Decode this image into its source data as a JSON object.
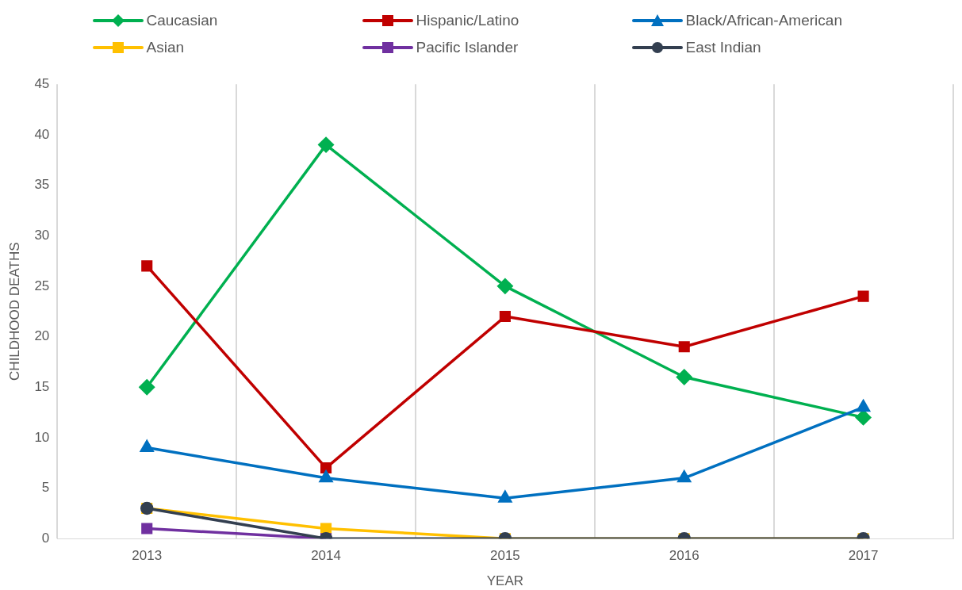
{
  "chart_data": {
    "type": "line",
    "xlabel": "YEAR",
    "ylabel": "CHILDHOOD DEATHS",
    "categories": [
      "2013",
      "2014",
      "2015",
      "2016",
      "2017"
    ],
    "series": [
      {
        "name": "Caucasian",
        "color": "#00b050",
        "marker": "diamond",
        "values": [
          15,
          39,
          25,
          16,
          12
        ]
      },
      {
        "name": "Hispanic/Latino",
        "color": "#c00000",
        "marker": "square",
        "values": [
          27,
          7,
          22,
          19,
          24
        ]
      },
      {
        "name": "Black/African-American",
        "color": "#0070c0",
        "marker": "triangle",
        "values": [
          9,
          6,
          4,
          6,
          13
        ]
      },
      {
        "name": "Asian",
        "color": "#ffc000",
        "marker": "square",
        "values": [
          3,
          1,
          0,
          0,
          0
        ]
      },
      {
        "name": "Pacific Islander",
        "color": "#7030a0",
        "marker": "square",
        "values": [
          1,
          0,
          null,
          null,
          null
        ]
      },
      {
        "name": "East Indian",
        "color": "#333f50",
        "marker": "circle",
        "values": [
          3,
          0,
          0,
          0,
          0
        ]
      }
    ],
    "ylim": [
      0,
      45
    ],
    "yticks": [
      0,
      5,
      10,
      15,
      20,
      25,
      30,
      35,
      40,
      45
    ],
    "grid": "x",
    "legend": "top",
    "line_style": "solid"
  }
}
